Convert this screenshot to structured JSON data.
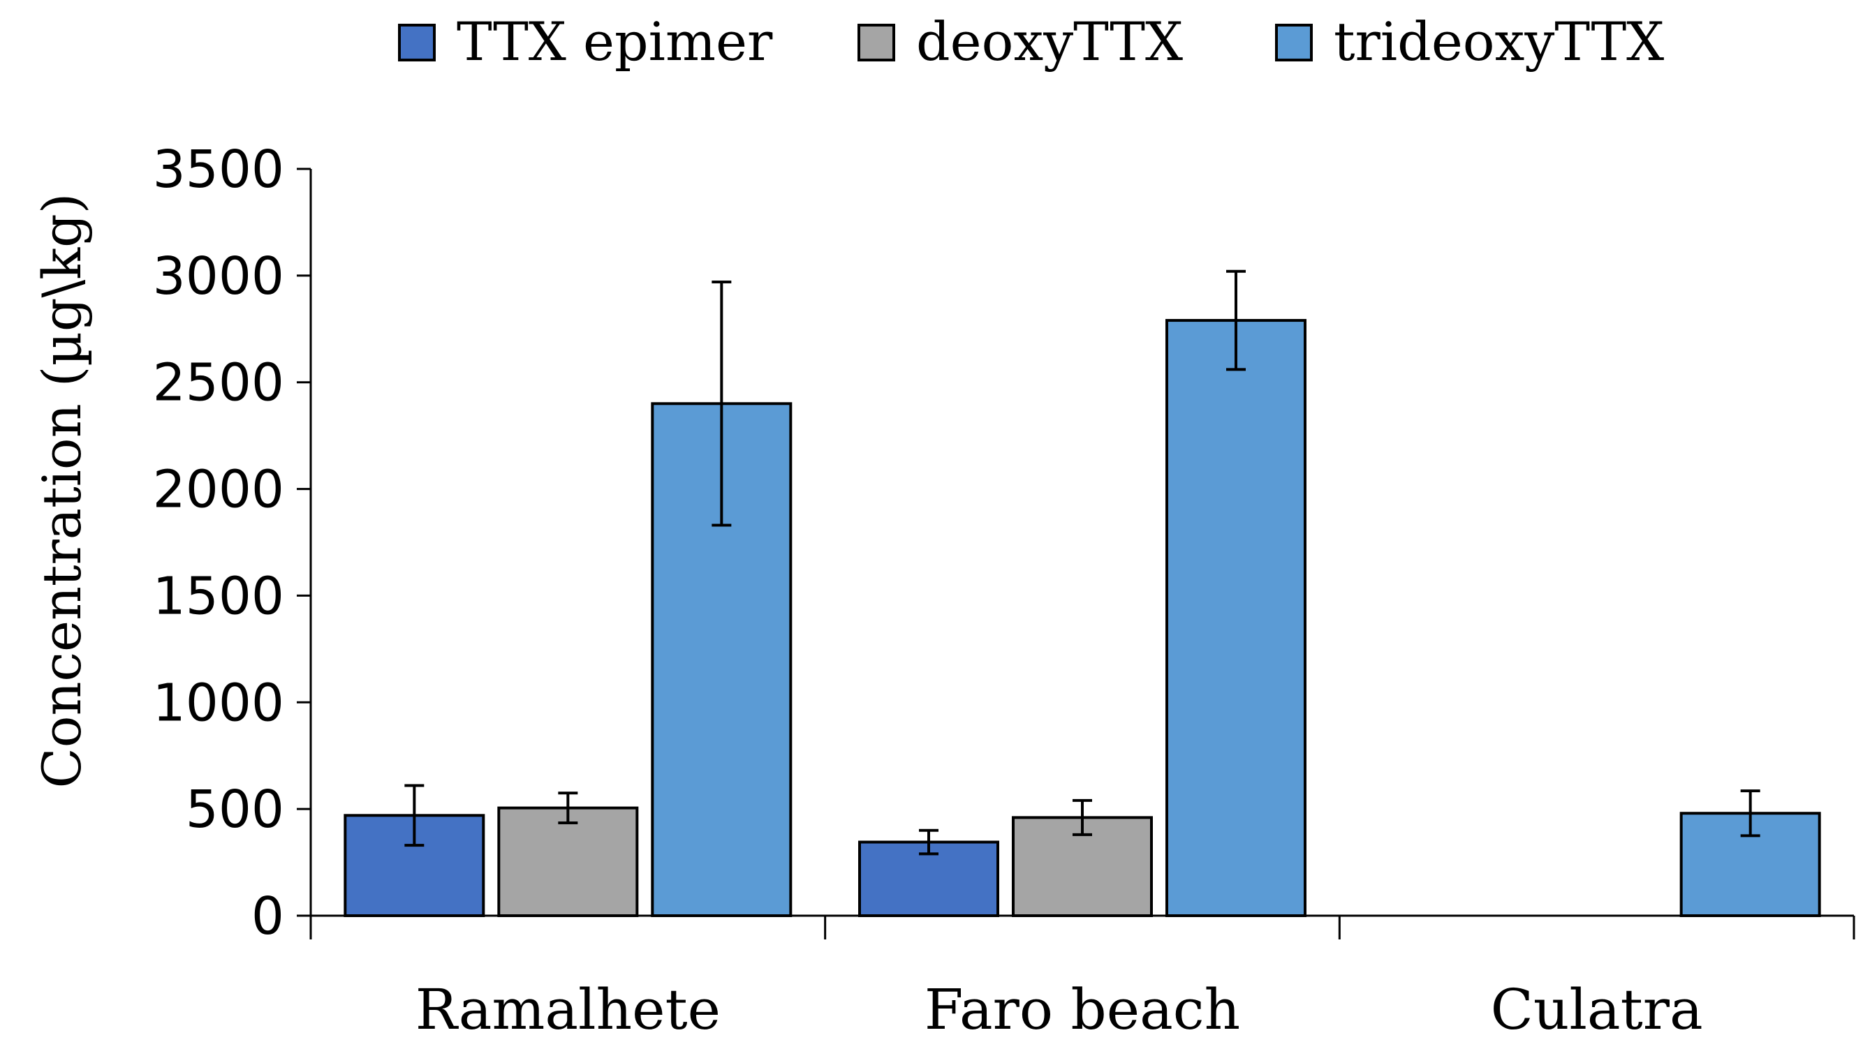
{
  "chart_data": {
    "type": "bar",
    "title": "",
    "xlabel": "",
    "ylabel": "Concentration (µg\\kg)",
    "ylim": [
      0,
      3500
    ],
    "yticks": [
      0,
      500,
      1000,
      1500,
      2000,
      2500,
      3000,
      3500
    ],
    "grid": false,
    "legend_position": "top",
    "categories": [
      "Ramalhete",
      "Faro beach",
      "Culatra"
    ],
    "series": [
      {
        "name": "TTX epimer",
        "color": "#4472C4",
        "values": [
          470,
          345,
          null
        ],
        "errors": [
          140,
          55,
          null
        ]
      },
      {
        "name": "deoxyTTX",
        "color": "#A5A5A5",
        "values": [
          505,
          460,
          null
        ],
        "errors": [
          70,
          80,
          null
        ]
      },
      {
        "name": "trideoxyTTX",
        "color": "#5B9BD5",
        "values": [
          2400,
          2790,
          480
        ],
        "errors": [
          570,
          230,
          105
        ]
      }
    ]
  }
}
